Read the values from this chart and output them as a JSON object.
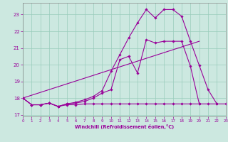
{
  "xlabel": "Windchill (Refroidissement éolien,°C)",
  "bg_color": "#cce8e0",
  "grid_color": "#99ccbb",
  "line_color": "#990099",
  "xlim": [
    0,
    23
  ],
  "ylim": [
    16.9,
    23.7
  ],
  "yticks": [
    17,
    18,
    19,
    20,
    21,
    22,
    23
  ],
  "xticks": [
    0,
    1,
    2,
    3,
    4,
    5,
    6,
    7,
    8,
    9,
    10,
    11,
    12,
    13,
    14,
    15,
    16,
    17,
    18,
    19,
    20,
    21,
    22,
    23
  ],
  "curves": [
    {
      "x": [
        0,
        1,
        2,
        3,
        4,
        5,
        6,
        7,
        8,
        9,
        10,
        11,
        12,
        13,
        14,
        15,
        16,
        17,
        18,
        19,
        20,
        21,
        22,
        23
      ],
      "y": [
        18.0,
        17.6,
        17.6,
        17.7,
        17.5,
        17.6,
        17.6,
        17.65,
        17.65,
        17.65,
        17.65,
        17.65,
        17.65,
        17.65,
        17.65,
        17.65,
        17.65,
        17.65,
        17.65,
        17.65,
        17.65,
        17.65,
        17.65,
        17.65
      ],
      "has_markers": true
    },
    {
      "x": [
        0,
        20
      ],
      "y": [
        18.0,
        21.4
      ],
      "has_markers": false
    },
    {
      "x": [
        0,
        1,
        2,
        3,
        4,
        5,
        6,
        7,
        8,
        9,
        10,
        11,
        12,
        13,
        14,
        15,
        16,
        17,
        18,
        19,
        20
      ],
      "y": [
        18.0,
        17.6,
        17.6,
        17.7,
        17.5,
        17.65,
        17.7,
        17.8,
        18.0,
        18.3,
        18.5,
        20.3,
        20.5,
        19.5,
        21.5,
        21.3,
        21.4,
        21.4,
        21.4,
        19.9,
        17.65
      ],
      "has_markers": true
    },
    {
      "x": [
        0,
        1,
        2,
        3,
        4,
        5,
        6,
        7,
        8,
        9,
        10,
        11,
        12,
        13,
        14,
        15,
        16,
        17,
        18,
        19,
        20,
        21,
        22
      ],
      "y": [
        18.0,
        17.6,
        17.6,
        17.7,
        17.5,
        17.65,
        17.75,
        17.9,
        18.1,
        18.45,
        19.6,
        20.6,
        21.6,
        22.5,
        23.3,
        22.8,
        23.3,
        23.3,
        22.9,
        21.4,
        19.95,
        18.5,
        17.65
      ],
      "has_markers": true
    }
  ]
}
